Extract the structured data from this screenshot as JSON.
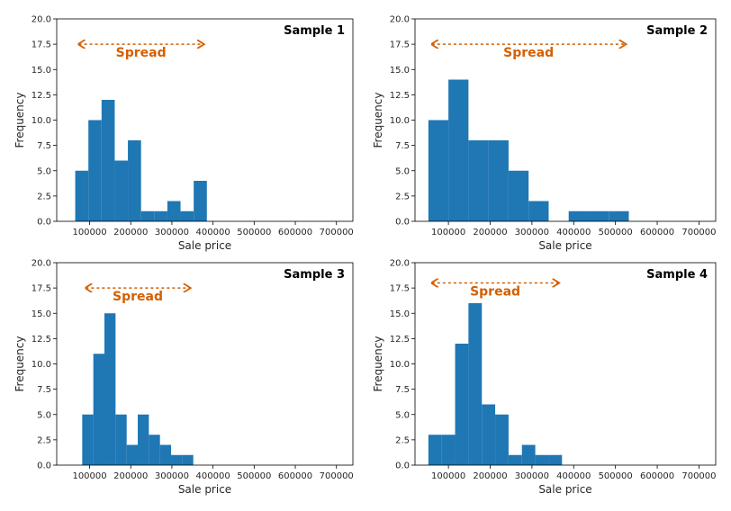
{
  "chart_data": [
    {
      "type": "histogram",
      "title": "Sample 1",
      "xlabel": "Sale price",
      "ylabel": "Frequency",
      "xlim": [
        20000,
        740000
      ],
      "ylim": [
        0,
        20
      ],
      "xticks": [
        100000,
        200000,
        300000,
        400000,
        500000,
        600000,
        700000
      ],
      "yticks": [
        0.0,
        2.5,
        5.0,
        7.5,
        10.0,
        12.5,
        15.0,
        17.5,
        20.0
      ],
      "bin_edges": [
        65000,
        97000,
        129000,
        161000,
        193000,
        225000,
        257000,
        289000,
        321000,
        353000,
        385000
      ],
      "counts": [
        5,
        10,
        12,
        6,
        8,
        1,
        1,
        2,
        1,
        4
      ],
      "bar_color": "#1f77b4",
      "annotation": {
        "text": "Spread",
        "from": 65000,
        "to": 385000,
        "y": 17.5,
        "color": "#d45f00"
      }
    },
    {
      "type": "histogram",
      "title": "Sample 2",
      "xlabel": "Sale price",
      "ylabel": "Frequency",
      "xlim": [
        20000,
        740000
      ],
      "ylim": [
        0,
        20
      ],
      "xticks": [
        100000,
        200000,
        300000,
        400000,
        500000,
        600000,
        700000
      ],
      "yticks": [
        0.0,
        2.5,
        5.0,
        7.5,
        10.0,
        12.5,
        15.0,
        17.5,
        20.0
      ],
      "bin_edges": [
        52000,
        100000,
        148000,
        196000,
        244000,
        292000,
        340000,
        388000,
        436000,
        484000,
        532000
      ],
      "counts": [
        10,
        14,
        8,
        8,
        5,
        2,
        0,
        1,
        1,
        1
      ],
      "bar_color": "#1f77b4",
      "annotation": {
        "text": "Spread",
        "from": 52000,
        "to": 532000,
        "y": 17.5,
        "color": "#d45f00"
      }
    },
    {
      "type": "histogram",
      "title": "Sample 3",
      "xlabel": "Sale price",
      "ylabel": "Frequency",
      "xlim": [
        20000,
        740000
      ],
      "ylim": [
        0,
        20
      ],
      "xticks": [
        100000,
        200000,
        300000,
        400000,
        500000,
        600000,
        700000
      ],
      "yticks": [
        0.0,
        2.5,
        5.0,
        7.5,
        10.0,
        12.5,
        15.0,
        17.5,
        20.0
      ],
      "bin_edges": [
        82000,
        109000,
        136000,
        163000,
        190000,
        217000,
        244000,
        271000,
        298000,
        325000,
        352000
      ],
      "counts": [
        5,
        11,
        15,
        5,
        2,
        5,
        3,
        2,
        1,
        1
      ],
      "bar_color": "#1f77b4",
      "annotation": {
        "text": "Spread",
        "from": 82000,
        "to": 352000,
        "y": 17.5,
        "color": "#d45f00"
      }
    },
    {
      "type": "histogram",
      "title": "Sample 4",
      "xlabel": "Sale price",
      "ylabel": "Frequency",
      "xlim": [
        20000,
        740000
      ],
      "ylim": [
        0,
        20
      ],
      "xticks": [
        100000,
        200000,
        300000,
        400000,
        500000,
        600000,
        700000
      ],
      "yticks": [
        0.0,
        2.5,
        5.0,
        7.5,
        10.0,
        12.5,
        15.0,
        17.5,
        20.0
      ],
      "bin_edges": [
        52000,
        84000,
        116000,
        148000,
        180000,
        212000,
        244000,
        276000,
        308000,
        340000,
        372000
      ],
      "counts": [
        3,
        3,
        12,
        16,
        6,
        5,
        1,
        2,
        1,
        1
      ],
      "bar_color": "#1f77b4",
      "annotation": {
        "text": "Spread",
        "from": 52000,
        "to": 372000,
        "y": 18.0,
        "color": "#d45f00"
      }
    }
  ]
}
